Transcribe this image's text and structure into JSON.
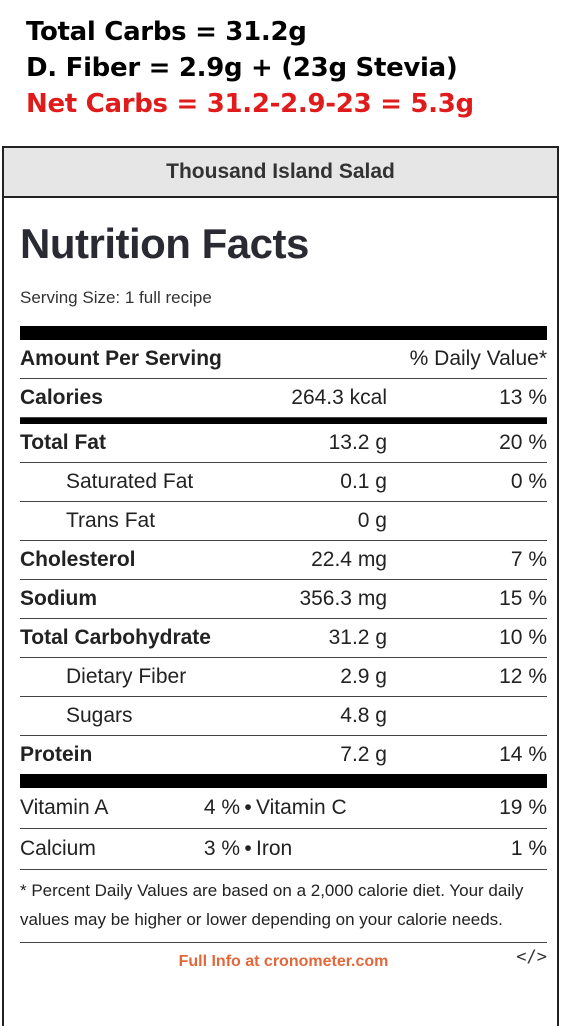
{
  "overlay": {
    "line1": "Total Carbs = 31.2g",
    "line2": "D. Fiber = 2.9g + (23g Stevia)",
    "line3": "Net Carbs = 31.2-2.9-23 = 5.3g",
    "color_black": "#000000",
    "color_red": "#e01b1b"
  },
  "card": {
    "recipe_title": "Thousand Island Salad",
    "nf_title": "Nutrition Facts",
    "serving_size": "Serving Size: 1 full recipe",
    "header": {
      "left": "Amount Per Serving",
      "right": "% Daily Value*"
    },
    "rows": [
      {
        "name": "Calories",
        "amount": "264.3 kcal",
        "dv": "13 %"
      },
      {
        "name": "Total Fat",
        "amount": "13.2 g",
        "dv": "20 %"
      },
      {
        "name": "Saturated Fat",
        "amount": "0.1 g",
        "dv": "0 %"
      },
      {
        "name": "Trans Fat",
        "amount": "0 g",
        "dv": ""
      },
      {
        "name": "Cholesterol",
        "amount": "22.4 mg",
        "dv": "7 %"
      },
      {
        "name": "Sodium",
        "amount": "356.3 mg",
        "dv": "15 %"
      },
      {
        "name": "Total Carbohydrate",
        "amount": "31.2 g",
        "dv": "10 %"
      },
      {
        "name": "Dietary Fiber",
        "amount": "2.9 g",
        "dv": "12 %"
      },
      {
        "name": "Sugars",
        "amount": "4.8 g",
        "dv": ""
      },
      {
        "name": "Protein",
        "amount": "7.2 g",
        "dv": "14 %"
      }
    ],
    "vitamins": [
      {
        "n1": "Vitamin A",
        "v1": "4 %",
        "n2": "Vitamin C",
        "v2": "19 %"
      },
      {
        "n1": "Calcium",
        "v1": "3 %",
        "n2": "Iron",
        "v2": "1 %"
      }
    ],
    "bullet": "•",
    "footnote": "* Percent Daily Values are based on a 2,000 calorie diet. Your daily values may be higher or lower depending on your calorie needs.",
    "credit": "Full Info at cronometer.com",
    "embed_icon": "</>"
  }
}
